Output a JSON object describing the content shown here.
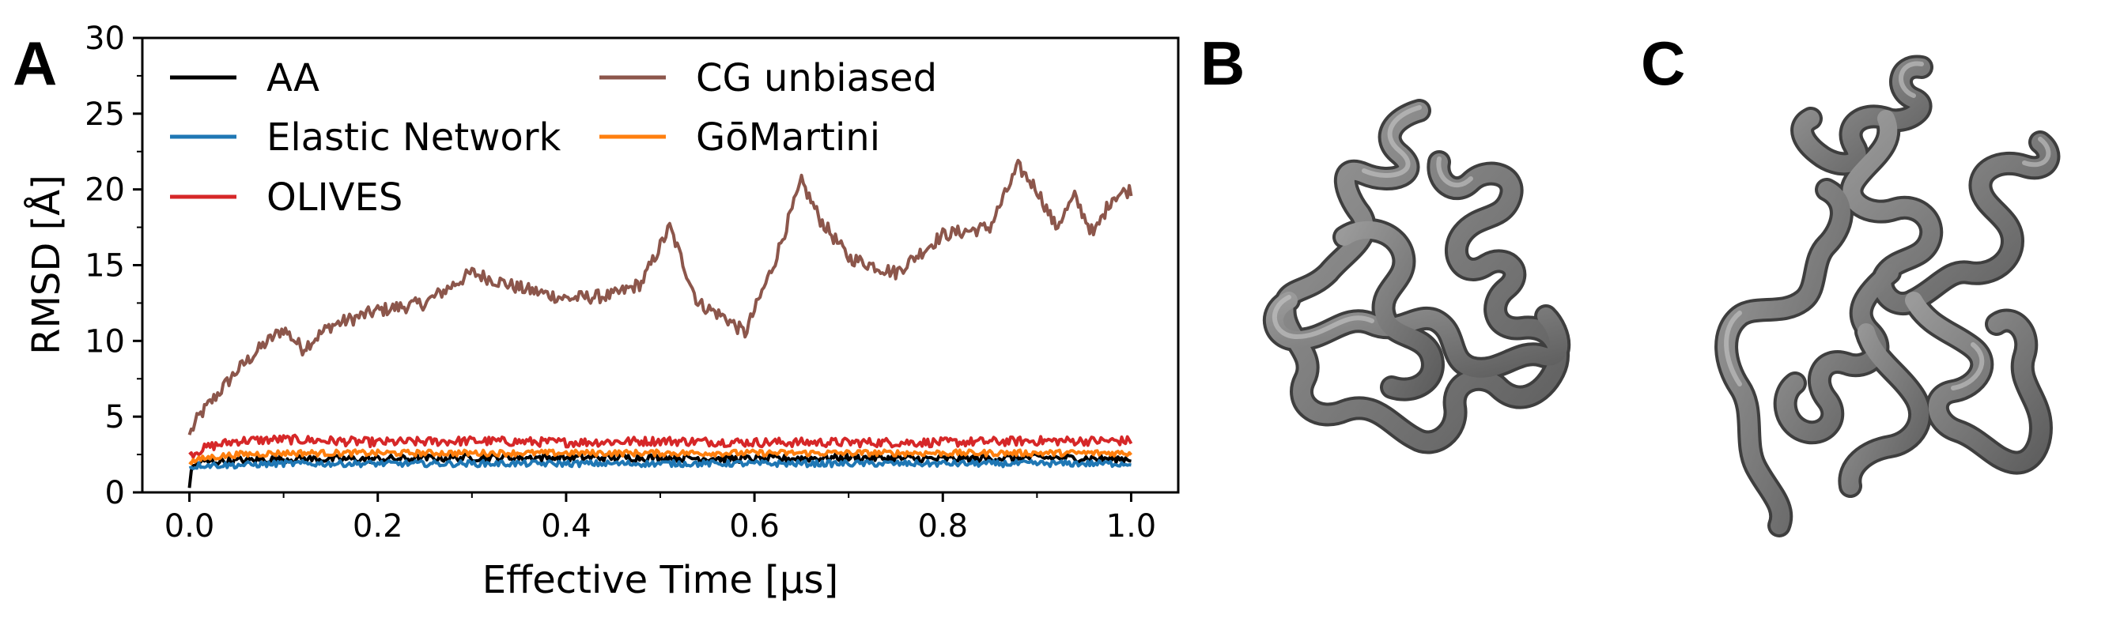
{
  "panels": {
    "a": "A",
    "b": "B",
    "c": "C"
  },
  "chart_data": {
    "type": "line",
    "xlabel": "Effective Time [µs]",
    "ylabel": "RMSD [Å]",
    "xlim": [
      -0.05,
      1.05
    ],
    "ylim": [
      0,
      30
    ],
    "xticks": [
      0.0,
      0.2,
      0.4,
      0.6,
      0.8,
      1.0
    ],
    "xtick_labels": [
      "0.0",
      "0.2",
      "0.4",
      "0.6",
      "0.8",
      "1.0"
    ],
    "yticks": [
      0,
      5,
      10,
      15,
      20,
      25,
      30
    ],
    "ytick_labels": [
      "0",
      "5",
      "10",
      "15",
      "20",
      "25",
      "30"
    ],
    "grid": false,
    "legend_position": "upper-left",
    "series": [
      {
        "name": "AA",
        "color": "#000000",
        "x": [
          0.0,
          0.002,
          0.01,
          0.05,
          0.1,
          0.2,
          0.3,
          0.4,
          0.5,
          0.6,
          0.7,
          0.8,
          0.9,
          1.0
        ],
        "values": [
          0.3,
          1.5,
          2.0,
          2.1,
          2.2,
          2.2,
          2.3,
          2.3,
          2.3,
          2.2,
          2.3,
          2.2,
          2.3,
          2.2
        ]
      },
      {
        "name": "Elastic Network",
        "color": "#1f77b4",
        "x": [
          0.0,
          0.01,
          0.05,
          0.1,
          0.2,
          0.3,
          0.4,
          0.5,
          0.6,
          0.7,
          0.8,
          0.9,
          1.0
        ],
        "values": [
          1.6,
          1.8,
          1.8,
          1.9,
          1.9,
          1.9,
          1.9,
          1.9,
          1.9,
          1.9,
          1.9,
          1.9,
          1.9
        ]
      },
      {
        "name": "OLIVES",
        "color": "#d62728",
        "x": [
          0.0,
          0.02,
          0.05,
          0.1,
          0.2,
          0.3,
          0.4,
          0.5,
          0.6,
          0.7,
          0.8,
          0.9,
          1.0
        ],
        "values": [
          2.5,
          3.0,
          3.4,
          3.5,
          3.3,
          3.4,
          3.3,
          3.4,
          3.3,
          3.3,
          3.3,
          3.4,
          3.4
        ]
      },
      {
        "name": "CG unbiased",
        "color": "#8c564b",
        "x": [
          0.0,
          0.01,
          0.03,
          0.05,
          0.08,
          0.1,
          0.12,
          0.15,
          0.2,
          0.25,
          0.3,
          0.35,
          0.4,
          0.45,
          0.48,
          0.51,
          0.54,
          0.57,
          0.59,
          0.62,
          0.65,
          0.67,
          0.7,
          0.75,
          0.8,
          0.85,
          0.88,
          0.9,
          0.92,
          0.94,
          0.96,
          0.98,
          1.0
        ],
        "values": [
          3.8,
          5.0,
          6.5,
          8.0,
          9.8,
          10.8,
          9.5,
          11.0,
          12.0,
          12.5,
          14.5,
          13.5,
          12.8,
          13.0,
          13.8,
          17.5,
          12.5,
          11.5,
          10.5,
          15.0,
          20.5,
          18.0,
          15.5,
          14.5,
          17.0,
          17.5,
          21.5,
          20.0,
          17.5,
          19.5,
          17.0,
          19.5,
          20.0
        ]
      },
      {
        "name": "GōMartini",
        "color": "#ff7f0e",
        "x": [
          0.0,
          0.02,
          0.05,
          0.1,
          0.2,
          0.3,
          0.4,
          0.5,
          0.6,
          0.7,
          0.8,
          0.9,
          1.0
        ],
        "values": [
          2.0,
          2.3,
          2.5,
          2.6,
          2.6,
          2.6,
          2.6,
          2.6,
          2.6,
          2.6,
          2.6,
          2.6,
          2.6
        ]
      }
    ]
  }
}
